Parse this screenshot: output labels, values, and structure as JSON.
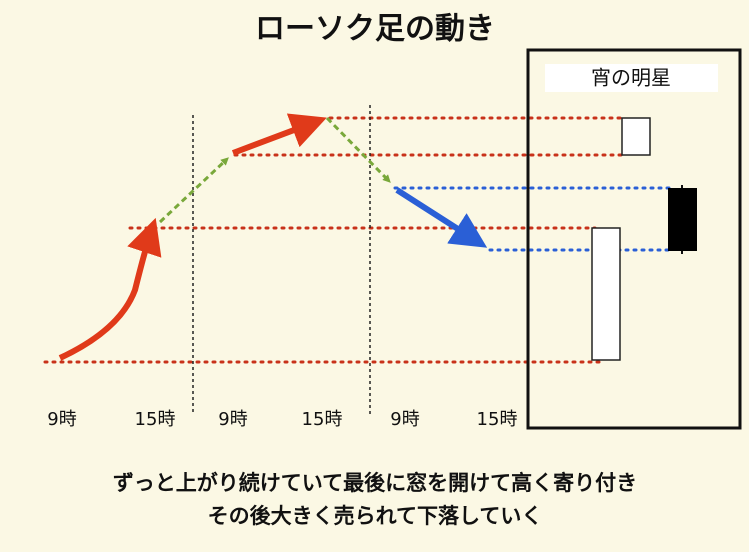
{
  "title": "ローソク足の動き",
  "box_label": "宵の明星",
  "time_labels": [
    "9時",
    "15時",
    "9時",
    "15時",
    "9時",
    "15時"
  ],
  "caption": [
    "ずっと上がり続けていて最後に窓を開けて高く寄り付き",
    "その後大きく売られて下落していく"
  ]
}
